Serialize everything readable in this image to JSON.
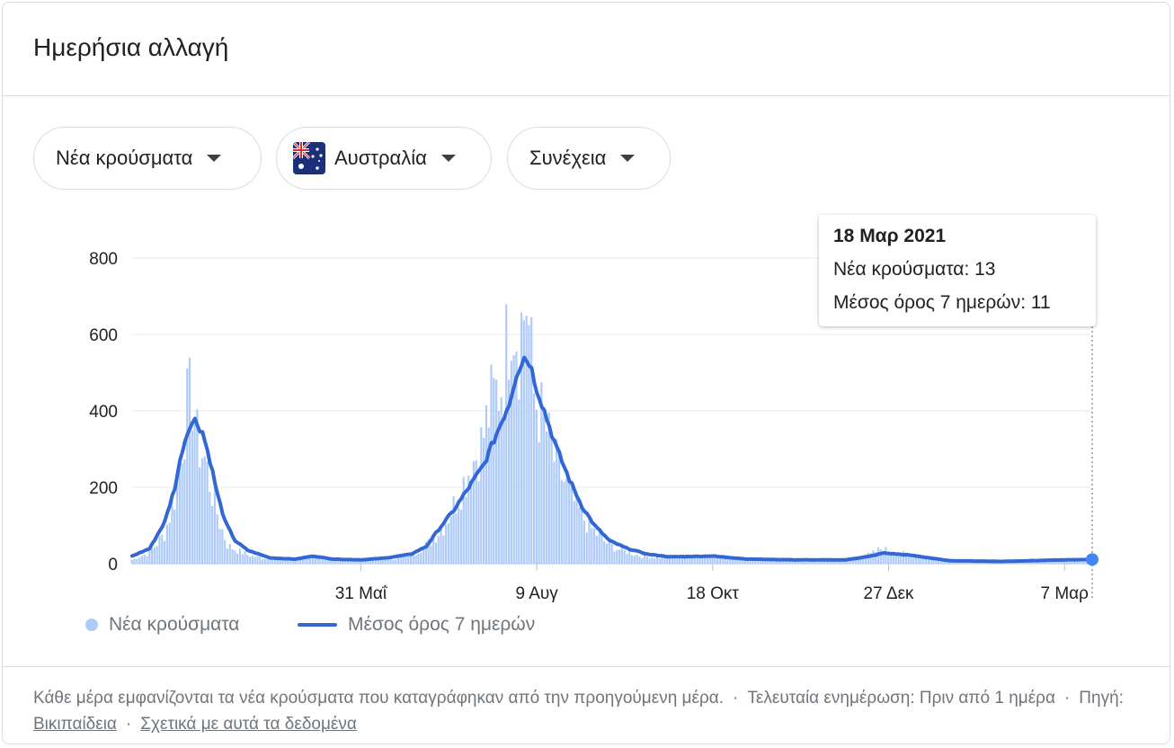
{
  "header": {
    "title": "Ημερήσια αλλαγή"
  },
  "filters": [
    {
      "label": "Νέα κρούσματα",
      "icon": "chevron-down-icon"
    },
    {
      "label": "Αυστραλία",
      "icon": "australia-flag-icon"
    },
    {
      "label": "Συνέχεια",
      "icon": "chevron-down-icon"
    }
  ],
  "tooltip": {
    "date": "18 Μαρ 2021",
    "cases_text": "Νέα κρούσματα: 13",
    "avg_text": "Μέσος όρος 7 ημερών: 11"
  },
  "legend": {
    "cases": "Νέα κρούσματα",
    "avg": "Μέσος όρος 7 ημερών"
  },
  "footer": {
    "note": "Κάθε μέρα εμφανίζονται τα νέα κρούσματα που καταγράφηκαν από την προηγούμενη μέρα.",
    "updated": "Τελευταία ενημέρωση: Πριν από 1 ημέρα",
    "source_label": "Πηγή:",
    "source_link": "Βικιπαίδεια",
    "about_link": "Σχετικά με αυτά τα δεδομένα"
  },
  "chart_data": {
    "type": "bar",
    "x_start": "2020-03-01",
    "x_end": "2021-03-18",
    "ylim": [
      0,
      800
    ],
    "y_ticks": [
      0,
      200,
      400,
      600,
      800
    ],
    "x_ticks": [
      {
        "date": "2020-05-31",
        "label": "31 Μαΐ"
      },
      {
        "date": "2020-08-09",
        "label": "9 Αυγ"
      },
      {
        "date": "2020-10-18",
        "label": "18 Οκτ"
      },
      {
        "date": "2020-12-27",
        "label": "27 Δεκ"
      },
      {
        "date": "2021-03-07",
        "label": "7 Μαρ"
      }
    ],
    "colors": {
      "bars": "#aecbfa",
      "line": "#3367d6",
      "grid": "#e8eaed",
      "axis": "#202124"
    },
    "series": [
      {
        "name": "Νέα κρούσματα",
        "kind": "bar",
        "keypoints": [
          [
            "2020-03-01",
            10
          ],
          [
            "2020-03-08",
            30
          ],
          [
            "2020-03-14",
            80
          ],
          [
            "2020-03-18",
            180
          ],
          [
            "2020-03-21",
            330
          ],
          [
            "2020-03-23",
            420
          ],
          [
            "2020-03-25",
            455
          ],
          [
            "2020-03-27",
            330
          ],
          [
            "2020-03-30",
            280
          ],
          [
            "2020-04-02",
            190
          ],
          [
            "2020-04-05",
            110
          ],
          [
            "2020-04-08",
            50
          ],
          [
            "2020-04-12",
            35
          ],
          [
            "2020-04-18",
            20
          ],
          [
            "2020-04-25",
            12
          ],
          [
            "2020-05-05",
            15
          ],
          [
            "2020-05-12",
            20
          ],
          [
            "2020-05-20",
            12
          ],
          [
            "2020-05-31",
            10
          ],
          [
            "2020-06-15",
            15
          ],
          [
            "2020-06-22",
            30
          ],
          [
            "2020-06-28",
            60
          ],
          [
            "2020-07-03",
            100
          ],
          [
            "2020-07-08",
            170
          ],
          [
            "2020-07-13",
            250
          ],
          [
            "2020-07-18",
            320
          ],
          [
            "2020-07-22",
            430
          ],
          [
            "2020-07-27",
            500
          ],
          [
            "2020-07-30",
            720
          ],
          [
            "2020-08-02",
            600
          ],
          [
            "2020-08-05",
            715
          ],
          [
            "2020-08-08",
            450
          ],
          [
            "2020-08-12",
            380
          ],
          [
            "2020-08-16",
            280
          ],
          [
            "2020-08-20",
            220
          ],
          [
            "2020-08-25",
            150
          ],
          [
            "2020-08-30",
            100
          ],
          [
            "2020-09-05",
            60
          ],
          [
            "2020-09-10",
            40
          ],
          [
            "2020-09-20",
            20
          ],
          [
            "2020-10-01",
            15
          ],
          [
            "2020-10-18",
            20
          ],
          [
            "2020-11-10",
            10
          ],
          [
            "2020-12-10",
            10
          ],
          [
            "2020-12-20",
            25
          ],
          [
            "2020-12-24",
            40
          ],
          [
            "2020-12-30",
            30
          ],
          [
            "2021-01-08",
            20
          ],
          [
            "2021-01-20",
            8
          ],
          [
            "2021-02-10",
            8
          ],
          [
            "2021-03-07",
            12
          ],
          [
            "2021-03-18",
            13
          ]
        ]
      },
      {
        "name": "Μέσος όρος 7 ημερών",
        "kind": "line",
        "keypoints": [
          [
            "2020-03-01",
            20
          ],
          [
            "2020-03-08",
            40
          ],
          [
            "2020-03-14",
            110
          ],
          [
            "2020-03-18",
            200
          ],
          [
            "2020-03-21",
            300
          ],
          [
            "2020-03-24",
            365
          ],
          [
            "2020-03-26",
            375
          ],
          [
            "2020-03-29",
            345
          ],
          [
            "2020-04-01",
            270
          ],
          [
            "2020-04-04",
            180
          ],
          [
            "2020-04-07",
            110
          ],
          [
            "2020-04-11",
            60
          ],
          [
            "2020-04-16",
            35
          ],
          [
            "2020-04-25",
            15
          ],
          [
            "2020-05-05",
            12
          ],
          [
            "2020-05-12",
            20
          ],
          [
            "2020-05-20",
            12
          ],
          [
            "2020-05-31",
            10
          ],
          [
            "2020-06-10",
            15
          ],
          [
            "2020-06-20",
            25
          ],
          [
            "2020-06-26",
            45
          ],
          [
            "2020-07-01",
            90
          ],
          [
            "2020-07-07",
            140
          ],
          [
            "2020-07-13",
            200
          ],
          [
            "2020-07-19",
            260
          ],
          [
            "2020-07-24",
            340
          ],
          [
            "2020-07-29",
            420
          ],
          [
            "2020-08-01",
            500
          ],
          [
            "2020-08-04",
            540
          ],
          [
            "2020-08-06",
            530
          ],
          [
            "2020-08-09",
            460
          ],
          [
            "2020-08-13",
            380
          ],
          [
            "2020-08-17",
            300
          ],
          [
            "2020-08-22",
            220
          ],
          [
            "2020-08-27",
            150
          ],
          [
            "2020-09-01",
            100
          ],
          [
            "2020-09-07",
            60
          ],
          [
            "2020-09-14",
            40
          ],
          [
            "2020-09-22",
            25
          ],
          [
            "2020-10-01",
            18
          ],
          [
            "2020-10-18",
            20
          ],
          [
            "2020-11-01",
            12
          ],
          [
            "2020-11-20",
            10
          ],
          [
            "2020-12-10",
            10
          ],
          [
            "2020-12-20",
            20
          ],
          [
            "2020-12-25",
            28
          ],
          [
            "2021-01-05",
            22
          ],
          [
            "2021-01-20",
            8
          ],
          [
            "2021-02-10",
            6
          ],
          [
            "2021-03-07",
            10
          ],
          [
            "2021-03-18",
            11
          ]
        ]
      }
    ]
  }
}
